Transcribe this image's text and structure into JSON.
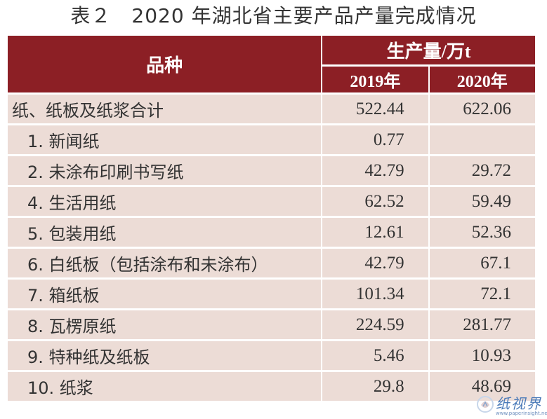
{
  "title": "表２　2020 年湖北省主要产品产量完成情况",
  "table": {
    "header_name": "品种",
    "header_group": "生产量/万t",
    "years": [
      "2019年",
      "2020年"
    ],
    "rows": [
      {
        "name": "纸、纸板及纸浆合计",
        "v2019": "522.44",
        "v2020": "622.06"
      },
      {
        "name": "1. 新闻纸",
        "v2019": "0.77",
        "v2020": ""
      },
      {
        "name": "2. 未涂布印刷书写纸",
        "v2019": "42.79",
        "v2020": "29.72"
      },
      {
        "name": "4. 生活用纸",
        "v2019": "62.52",
        "v2020": "59.49"
      },
      {
        "name": "5. 包装用纸",
        "v2019": "12.61",
        "v2020": "52.36"
      },
      {
        "name": "6. 白纸板（包括涂布和未涂布）",
        "v2019": "42.79",
        "v2020": "67.1"
      },
      {
        "name": "7. 箱纸板",
        "v2019": "101.34",
        "v2020": "72.1"
      },
      {
        "name": "8. 瓦楞原纸",
        "v2019": "224.59",
        "v2020": "281.77"
      },
      {
        "name": "9. 特种纸及纸板",
        "v2019": "5.46",
        "v2020": "10.93"
      },
      {
        "name": "10. 纸浆",
        "v2019": "29.8",
        "v2020": "48.69"
      }
    ]
  },
  "watermark": {
    "text": "纸视界",
    "url": "www.paperinsight.net"
  },
  "colors": {
    "header_bg": "#8c1f25",
    "row_bg": "#ecdcd6",
    "text": "#333333",
    "watermark": "#4a7ab8"
  }
}
